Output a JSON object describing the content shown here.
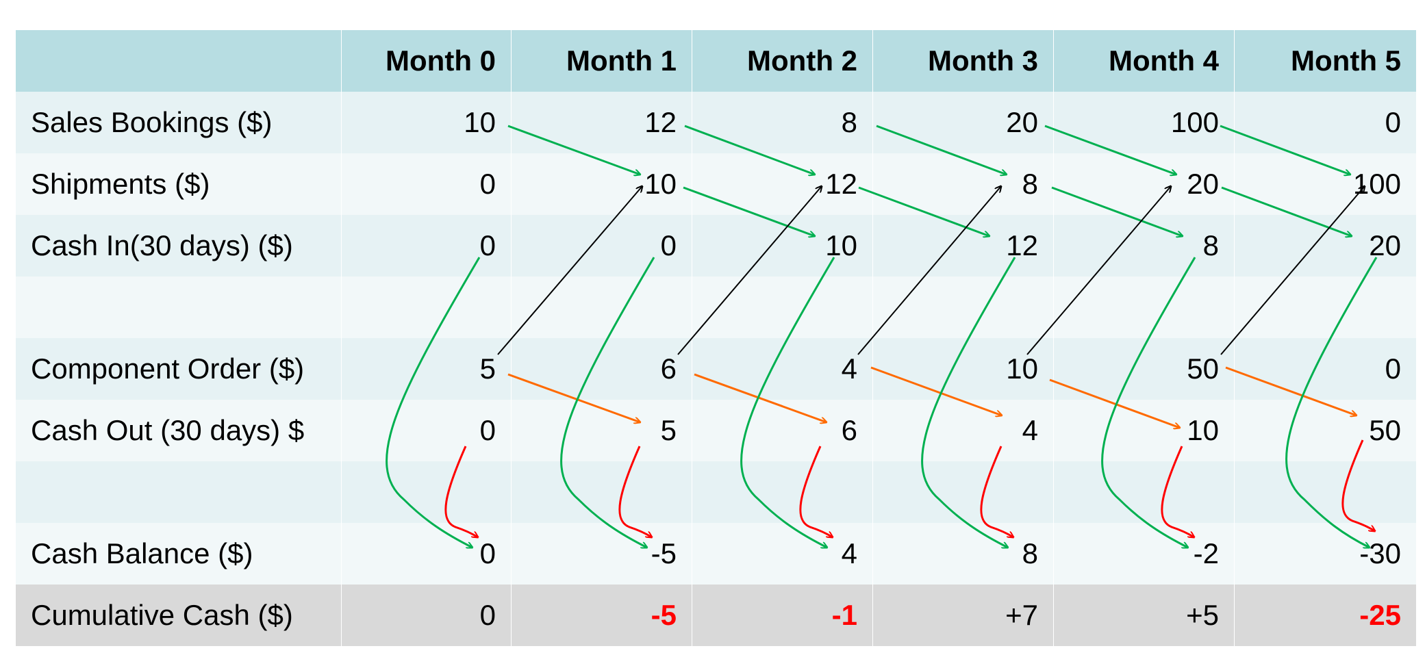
{
  "table": {
    "headers": [
      "",
      "Month 0",
      "Month 1",
      "Month 2",
      "Month 3",
      "Month 4",
      "Month 5"
    ],
    "rows": [
      {
        "label": "Sales Bookings ($)",
        "values": [
          "10",
          "12",
          "8",
          "20",
          "100",
          "0"
        ]
      },
      {
        "label": "Shipments ($)",
        "values": [
          "0",
          "10",
          "12",
          "8",
          "20",
          "100"
        ]
      },
      {
        "label": "Cash In(30 days) ($)",
        "values": [
          "0",
          "0",
          "10",
          "12",
          "8",
          "20"
        ]
      },
      {
        "label": "",
        "values": [
          "",
          "",
          "",
          "",
          "",
          ""
        ]
      },
      {
        "label": "Component Order ($)",
        "values": [
          "5",
          "6",
          "4",
          "10",
          "50",
          "0"
        ]
      },
      {
        "label": "Cash Out (30 days) $",
        "values": [
          "0",
          "5",
          "6",
          "4",
          "10",
          "50"
        ]
      },
      {
        "label": "",
        "values": [
          "",
          "",
          "",
          "",
          "",
          ""
        ]
      },
      {
        "label": "Cash Balance ($)",
        "values": [
          "0",
          "-5",
          "4",
          "8",
          "-2",
          "-30"
        ]
      },
      {
        "label": "Cumulative Cash ($)",
        "values": [
          "0",
          "-5",
          "-1",
          "+7",
          "+5",
          "-25"
        ]
      }
    ]
  },
  "colors": {
    "header_bg": "#b7dde2",
    "row_odd_bg": "#e6f2f4",
    "row_even_bg": "#f2f8f9",
    "total_bg": "#d9d9d9",
    "negative_text": "#ff0000",
    "arrow_green": "#00b050",
    "arrow_orange": "#ff6a00",
    "arrow_red": "#ff0000",
    "arrow_black": "#000000"
  }
}
